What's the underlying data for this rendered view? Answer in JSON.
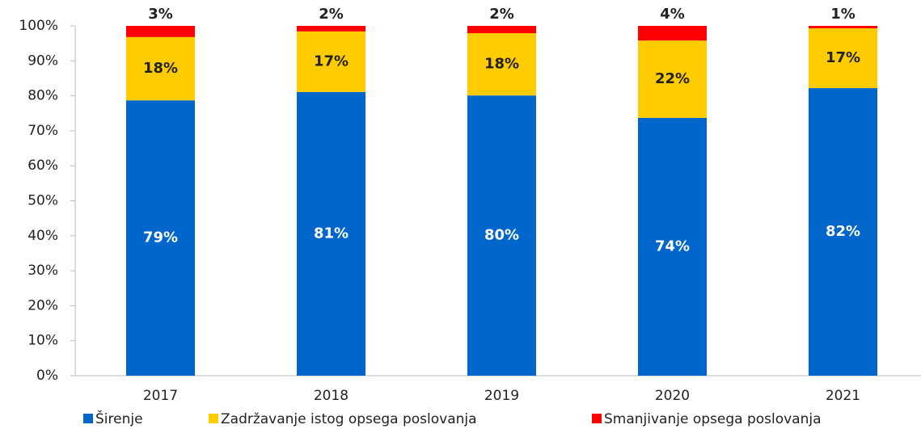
{
  "chart_data": {
    "type": "stacked_bar",
    "categories": [
      "2017",
      "2018",
      "2019",
      "2020",
      "2021"
    ],
    "series": [
      {
        "name": "Širenje",
        "color": "#0066cc",
        "values": [
          78.7,
          81.1,
          80.1,
          73.7,
          82.2
        ],
        "value_labels": [
          "79%",
          "81%",
          "80%",
          "74%",
          "82%"
        ]
      },
      {
        "name": "Zadržavanje istog opsega poslovanja",
        "color": "#ffcc00",
        "values": [
          18.1,
          17.3,
          17.8,
          22.1,
          17.1
        ],
        "value_labels": [
          "18%",
          "17%",
          "18%",
          "22%",
          "17%"
        ]
      },
      {
        "name": "Smanjivanje opsega poslovanja",
        "color": "#ff0000",
        "values": [
          3.2,
          1.6,
          2.1,
          4.2,
          0.7
        ],
        "value_labels": [
          "3%",
          "2%",
          "2%",
          "4%",
          "1%"
        ]
      }
    ],
    "ylim": [
      0,
      100
    ],
    "yticks": [
      {
        "value": 0,
        "label": "0%"
      },
      {
        "value": 10,
        "label": "10%"
      },
      {
        "value": 20,
        "label": "20%"
      },
      {
        "value": 30,
        "label": "30%"
      },
      {
        "value": 40,
        "label": "40%"
      },
      {
        "value": 50,
        "label": "50%"
      },
      {
        "value": 60,
        "label": "60%"
      },
      {
        "value": 70,
        "label": "70%"
      },
      {
        "value": 80,
        "label": "80%"
      },
      {
        "value": 90,
        "label": "90%"
      },
      {
        "value": 100,
        "label": "100%"
      }
    ],
    "grid": false,
    "legend": "bottom"
  }
}
